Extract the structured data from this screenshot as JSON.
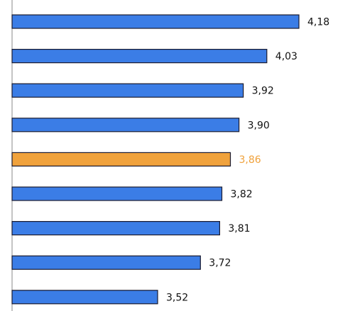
{
  "chart_data": {
    "type": "bar",
    "orientation": "horizontal",
    "values": [
      4.18,
      4.03,
      3.92,
      3.9,
      3.86,
      3.82,
      3.81,
      3.72,
      3.52
    ],
    "labels": [
      "4,18",
      "4,03",
      "3,92",
      "3,90",
      "3,86",
      "3,82",
      "3,81",
      "3,72",
      "3,52"
    ],
    "highlight_index": 4,
    "colors": {
      "bar": "#3b7de6",
      "bar_highlight": "#f0a23c",
      "bar_border": "#1a1a2e",
      "label": "#111111",
      "label_highlight": "#f0a23c",
      "axis": "#888888"
    },
    "grid": false,
    "legend": "none"
  }
}
